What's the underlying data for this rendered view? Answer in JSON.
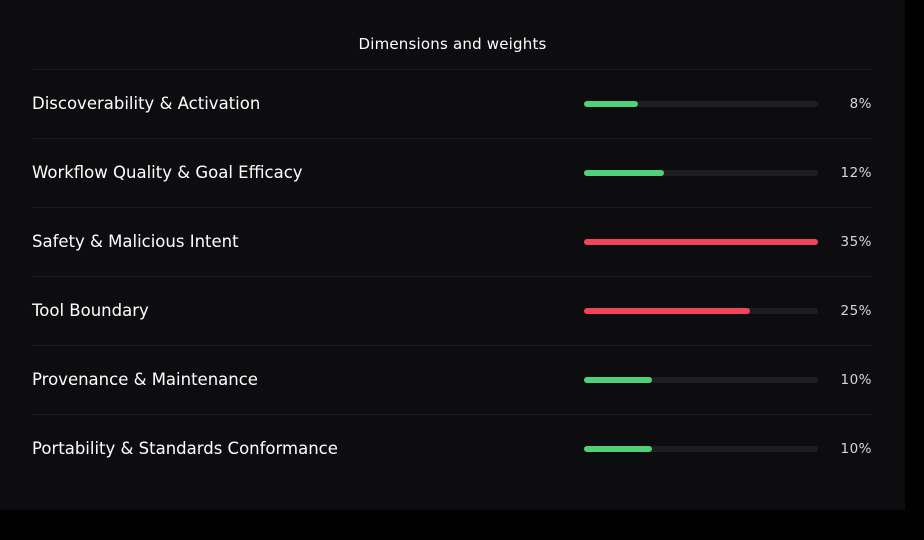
{
  "title": "Dimensions and weights",
  "colors": {
    "positive": "#4fd17a",
    "critical": "#ef4459",
    "track": "#1f1f22"
  },
  "dimensions": [
    {
      "label": "Discoverability & Activation",
      "weight_text": "8%",
      "fill_fraction": 0.23,
      "status": "positive"
    },
    {
      "label": "Workflow Quality & Goal Efficacy",
      "weight_text": "12%",
      "fill_fraction": 0.34,
      "status": "positive"
    },
    {
      "label": "Safety & Malicious Intent",
      "weight_text": "35%",
      "fill_fraction": 1.0,
      "status": "critical"
    },
    {
      "label": "Tool Boundary",
      "weight_text": "25%",
      "fill_fraction": 0.71,
      "status": "critical"
    },
    {
      "label": "Provenance & Maintenance",
      "weight_text": "10%",
      "fill_fraction": 0.29,
      "status": "positive"
    },
    {
      "label": "Portability & Standards Conformance",
      "weight_text": "10%",
      "fill_fraction": 0.29,
      "status": "positive"
    }
  ]
}
